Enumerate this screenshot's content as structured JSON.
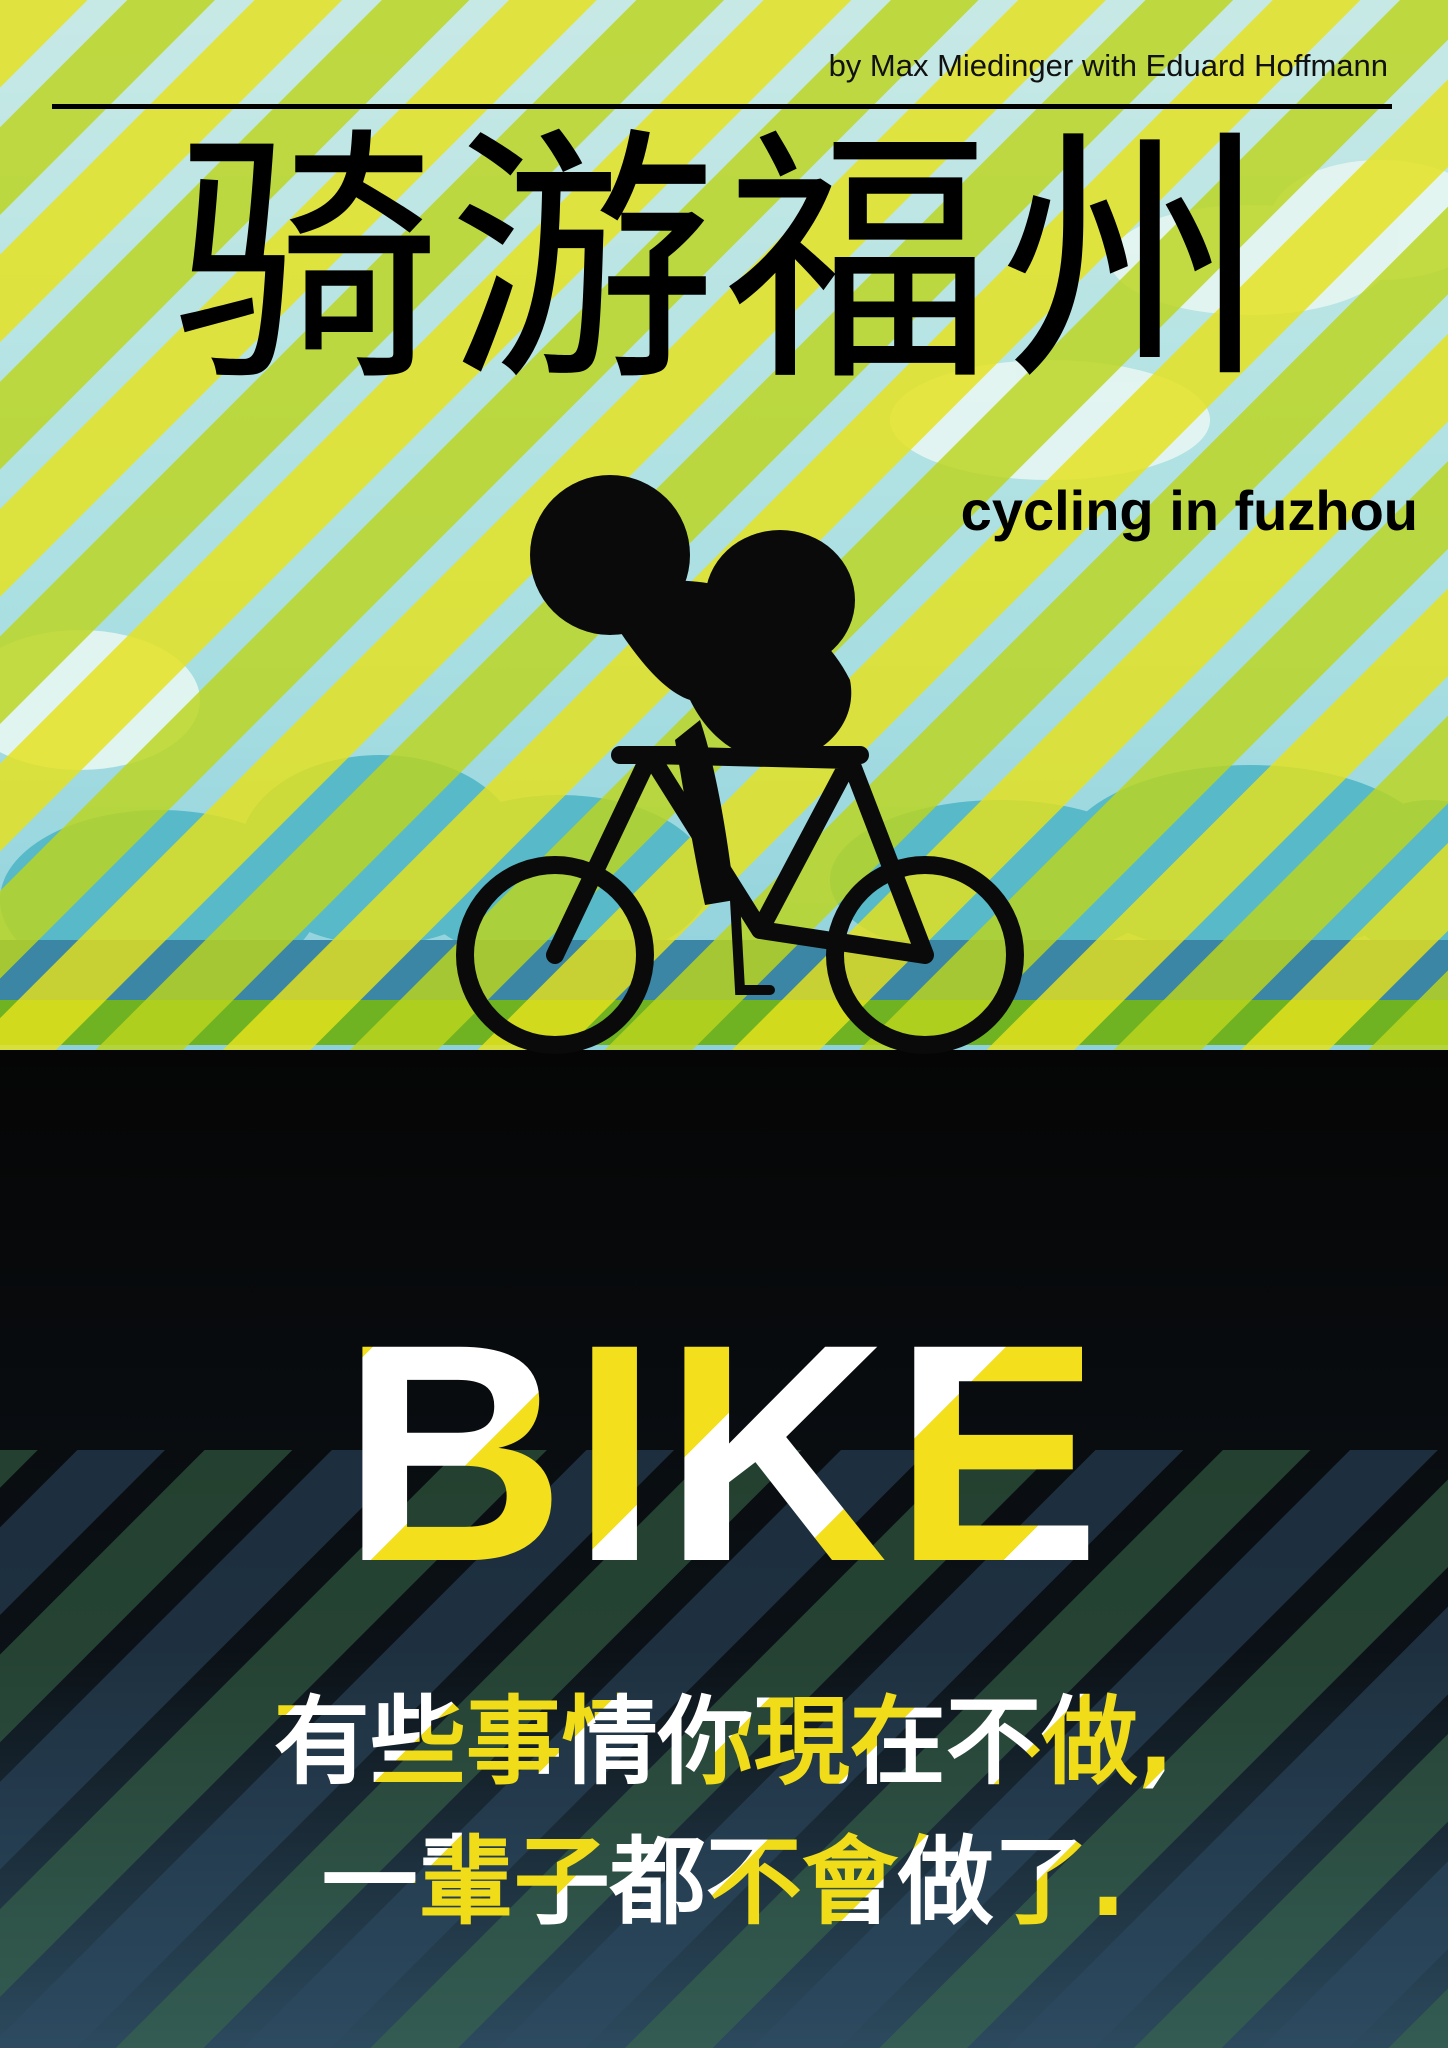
{
  "poster": {
    "byline": "by Max Miedinger with Eduard Hoffmann",
    "title_cn": "骑游福州",
    "subtitle_en": "cycling in fuzhou",
    "big_word": "BIKE",
    "tagline_line1": "有些事情你現在不做,",
    "tagline_line2": "一輩子都不會做了."
  },
  "colors": {
    "stripe_yellow": "#e8e21c",
    "stripe_lime": "#b9d21a",
    "sky_light": "#d6eee6",
    "sky_blue": "#8fd3e0",
    "grass_green": "#7fbf2a",
    "ground_black": "#050505",
    "silhouette": "#0a0a0a"
  }
}
